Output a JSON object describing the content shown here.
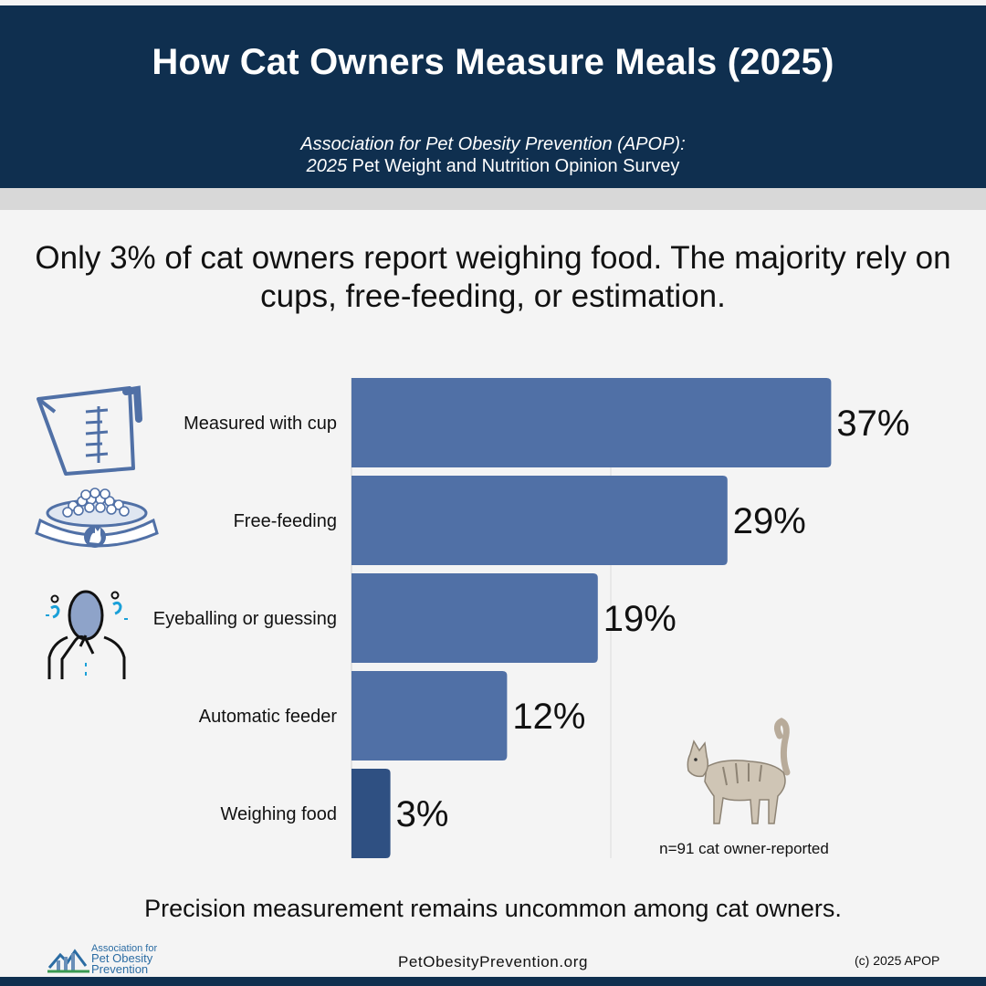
{
  "header": {
    "title": "How Cat Owners Measure Meals (2025)",
    "subtitle_line1": "Association for Pet Obesity Prevention (APOP):",
    "subtitle_year": "2025",
    "subtitle_line2_rest": " Pet Weight and Nutrition Opinion Survey"
  },
  "headline": "Only 3% of cat owners report weighing food. The majority rely on cups, free-feeding, or estimation.",
  "chart_data": {
    "type": "bar",
    "orientation": "horizontal",
    "categories": [
      "Measured with cup",
      "Free-feeding",
      "Eyeballing or guessing",
      "Automatic feeder",
      "Weighing food"
    ],
    "values": [
      37,
      29,
      19,
      12,
      3
    ],
    "value_labels": [
      "37%",
      "29%",
      "19%",
      "12%",
      "3%"
    ],
    "xlim": [
      0,
      40
    ],
    "grid": false,
    "colors": {
      "bar": "#5070a6",
      "highlight": "#2f5082"
    },
    "highlight_index": 4
  },
  "note": "n=91 cat owner-reported",
  "footer": {
    "summary": "Precision measurement remains uncommon among cat owners.",
    "site": "PetObesityPrevention.org",
    "copyright": "(c) 2025 APOP",
    "logo_line1": "Association for",
    "logo_line2": "Pet Obesity",
    "logo_line3": "Prevention"
  },
  "icons": [
    "measuring-cup-icon",
    "food-bowl-icon",
    "confused-person-icon",
    "cat-illustration"
  ]
}
